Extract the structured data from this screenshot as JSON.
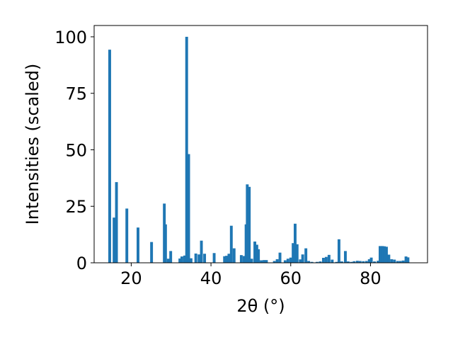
{
  "chart_data": {
    "type": "bar",
    "title": "",
    "xlabel": "2θ (°)",
    "ylabel": "Intensities (scaled)",
    "xlim": [
      10.7,
      94.3
    ],
    "ylim": [
      0,
      105
    ],
    "xticks": [
      20,
      40,
      60,
      80
    ],
    "yticks": [
      0,
      25,
      50,
      75,
      100
    ],
    "bar_color": "#1f77b4",
    "bar_width": 0.7,
    "grid": false,
    "legend": "none",
    "x": [
      14.6,
      15.7,
      16.3,
      18.9,
      21.7,
      25.1,
      28.3,
      28.6,
      29.3,
      29.9,
      32.2,
      32.7,
      33.4,
      33.9,
      34.4,
      35.0,
      36.2,
      37.0,
      37.6,
      38.4,
      40.8,
      43.4,
      43.9,
      44.5,
      45.1,
      45.8,
      47.6,
      48.3,
      48.8,
      49.1,
      49.6,
      50.2,
      51.0,
      51.5,
      51.9,
      52.6,
      53.3,
      53.9,
      55.9,
      56.6,
      57.3,
      58.6,
      59.3,
      60.0,
      60.6,
      61.1,
      61.6,
      62.4,
      63.0,
      63.8,
      64.5,
      65.3,
      66.6,
      67.4,
      68.2,
      68.9,
      69.6,
      70.4,
      71.5,
      72.1,
      72.8,
      73.7,
      74.4,
      75.2,
      75.9,
      76.7,
      77.4,
      78.2,
      79.0,
      79.7,
      80.2,
      81.0,
      81.9,
      82.4,
      83.0,
      83.5,
      84.0,
      84.6,
      85.3,
      86.0,
      86.8,
      87.5,
      88.2,
      88.9,
      89.4
    ],
    "values": [
      94.3,
      20.0,
      35.7,
      24.0,
      15.6,
      9.2,
      26.2,
      17.0,
      1.8,
      5.2,
      1.9,
      2.8,
      3.2,
      100.0,
      48.1,
      2.0,
      4.1,
      3.7,
      9.8,
      4.0,
      4.3,
      2.9,
      3.1,
      4.0,
      16.4,
      6.4,
      3.4,
      3.0,
      17.0,
      34.7,
      33.6,
      1.8,
      9.4,
      8.0,
      6.0,
      1.1,
      1.2,
      1.2,
      0.8,
      1.6,
      4.5,
      1.1,
      1.8,
      2.3,
      8.7,
      17.3,
      8.2,
      1.5,
      3.7,
      6.4,
      0.8,
      0.4,
      0.4,
      0.6,
      2.2,
      2.6,
      3.5,
      1.4,
      0.4,
      10.4,
      0.6,
      5.2,
      0.6,
      0.4,
      0.7,
      0.9,
      0.8,
      0.7,
      0.8,
      1.6,
      2.3,
      0.6,
      0.9,
      7.4,
      7.4,
      7.3,
      7.1,
      3.6,
      1.6,
      1.4,
      0.8,
      0.8,
      1.0,
      2.8,
      2.4
    ]
  }
}
